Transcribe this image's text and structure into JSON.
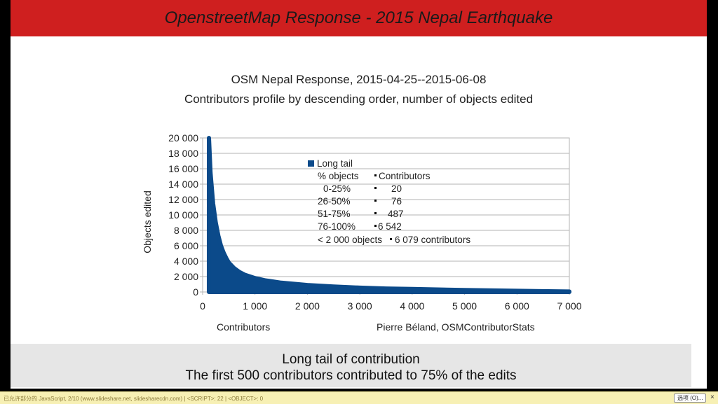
{
  "slide": {
    "title": "OpenstreetMap Response - 2015 Nepal Earthquake",
    "caption_line1": "Long tail of contribution",
    "caption_line2": "The first 500 contributors contributed to 75% of the edits"
  },
  "chart_data": {
    "type": "area",
    "title": "OSM Nepal Response, 2015-04-25--2015-06-08",
    "subtitle": "Contributors profile by descending order, number of objects edited",
    "xlabel": "Contributors",
    "ylabel": "Objects edited",
    "source_label": "Pierre Béland, OSMContributorStats",
    "xlim": [
      0,
      7000
    ],
    "ylim": [
      0,
      20000
    ],
    "x_ticks": [
      0,
      1000,
      2000,
      3000,
      4000,
      5000,
      6000,
      7000
    ],
    "x_tick_labels": [
      "0",
      "1 000",
      "2 000",
      "3 000",
      "4 000",
      "5 000",
      "6 000",
      "7 000"
    ],
    "y_ticks": [
      0,
      2000,
      4000,
      6000,
      8000,
      10000,
      12000,
      14000,
      16000,
      18000,
      20000
    ],
    "y_tick_labels": [
      "0",
      "2 000",
      "4 000",
      "6 000",
      "8 000",
      "10 000",
      "12 000",
      "14 000",
      "16 000",
      "18 000",
      "20 000"
    ],
    "grid": true,
    "series_color": "#0b4a8a",
    "series": [
      {
        "name": "Long tail",
        "x": [
          120,
          150,
          200,
          250,
          300,
          350,
          400,
          450,
          500,
          600,
          700,
          800,
          1000,
          1200,
          1500,
          2000,
          2500,
          3000,
          3500,
          4000,
          5000,
          6000,
          7000
        ],
        "values": [
          20000,
          15500,
          11500,
          9000,
          7300,
          6000,
          5100,
          4400,
          3800,
          3100,
          2600,
          2250,
          1800,
          1500,
          1200,
          900,
          700,
          550,
          450,
          380,
          250,
          150,
          50
        ]
      }
    ],
    "legend": {
      "placement": "inside-center",
      "series_label": "Long tail",
      "header_left": "% objects",
      "header_right": "Contributors",
      "rows": [
        {
          "range": "0-25%",
          "contributors": "20"
        },
        {
          "range": "26-50%",
          "contributors": "76"
        },
        {
          "range": "51-75%",
          "contributors": "487"
        },
        {
          "range": "76-100%",
          "contributors": "6 542"
        }
      ],
      "footer_left": "< 2 000 objects",
      "footer_right": "6 079 contributors"
    }
  },
  "statusbar": {
    "text": "已允许部分的 JavaScript, 2/10 (www.slideshare.net, slidesharecdn.com) | <SCRIPT>: 22 | <OBJECT>: 0",
    "options_label": "选项 (O)...",
    "close_label": "×"
  }
}
